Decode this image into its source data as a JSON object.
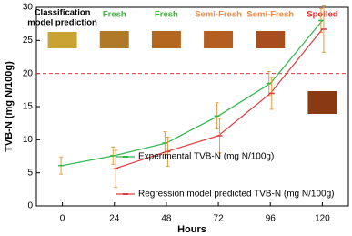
{
  "chart_data": {
    "type": "line",
    "x": [
      0,
      24,
      48,
      72,
      96,
      120
    ],
    "xlim": [
      -12,
      132
    ],
    "xticks": [
      0,
      24,
      48,
      72,
      96,
      120
    ],
    "ylim": [
      0,
      30
    ],
    "yticks": [
      0,
      5,
      10,
      15,
      20,
      25,
      30
    ],
    "x_label": "Hours",
    "y_label": "TVB-N  (mg N/100g)",
    "error_color": "#e89a3c",
    "series": [
      {
        "name": "Experimental TVB-N  (mg N/100g)",
        "color": "#2fb44a",
        "values": [
          6.1,
          7.6,
          9.5,
          13.6,
          18.5,
          28.0
        ],
        "errors": [
          1.3,
          1.3,
          1.7,
          2.0,
          1.8,
          1.8
        ]
      },
      {
        "name": "Regression model predicted TVB-N  (mg N/100g)",
        "color": "#e0393a",
        "values": [
          null,
          5.6,
          8.2,
          10.6,
          17.0,
          26.7
        ],
        "errors": [
          null,
          2.8,
          2.2,
          2.6,
          2.4,
          3.5
        ]
      }
    ],
    "threshold": {
      "value": 20,
      "color": "#e0393a"
    },
    "prediction_header": [
      "Classification",
      "model prediction"
    ],
    "predictions": [
      {
        "label": "Fresh",
        "color": "#3cb43c",
        "swatch": "#b0792a"
      },
      {
        "label": "Fresh",
        "color": "#3cb43c",
        "swatch": "#b4681f"
      },
      {
        "label": "Semi-Fresh",
        "color": "#ee8a4a",
        "swatch": "#b45e22"
      },
      {
        "label": "Semi-Fresh",
        "color": "#ee8a4a",
        "swatch": "#a84e1e"
      },
      {
        "label": "Spoiled",
        "color": "#e0302a",
        "swatch": "#8a3a12"
      }
    ],
    "header_swatch": "#c9a233",
    "legend": "lower right"
  }
}
